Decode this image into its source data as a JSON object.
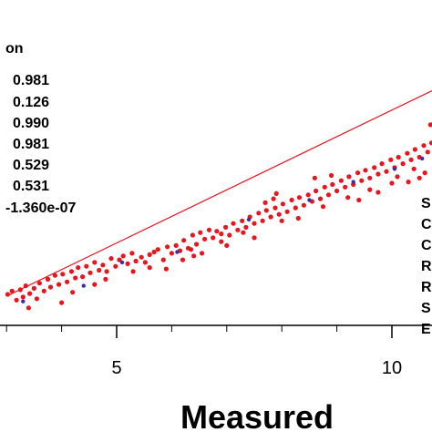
{
  "chart_data": {
    "type": "scatter",
    "title": "",
    "xlabel": "Measured",
    "ylabel": "",
    "xlim": [
      3,
      11.5
    ],
    "ylim": [
      0,
      12
    ],
    "x_ticks": [
      5,
      10
    ],
    "x_tick_labels": [
      "5",
      "10"
    ],
    "grid": false,
    "stats_header": "on",
    "stats_values": [
      "0.981",
      "0.126",
      "0.990",
      "0.981",
      "0.529",
      "0.531",
      "-1.360e-07"
    ],
    "right_legend_letters": [
      "S",
      "C",
      "C",
      "R",
      "R",
      "S",
      "E"
    ],
    "fit_line": {
      "x": [
        3,
        11.5
      ],
      "y": [
        1.65,
        10.35
      ]
    },
    "series": [
      {
        "color": "#e8151f",
        "points": [
          [
            3.02,
            1.72
          ],
          [
            3.1,
            1.85
          ],
          [
            3.18,
            1.5
          ],
          [
            3.25,
            1.9
          ],
          [
            3.3,
            1.62
          ],
          [
            3.35,
            2.05
          ],
          [
            3.42,
            1.75
          ],
          [
            3.5,
            1.95
          ],
          [
            3.55,
            1.55
          ],
          [
            3.6,
            2.15
          ],
          [
            3.68,
            1.85
          ],
          [
            3.75,
            2.3
          ],
          [
            3.8,
            2.0
          ],
          [
            3.88,
            2.45
          ],
          [
            3.95,
            2.1
          ],
          [
            4.02,
            2.5
          ],
          [
            4.1,
            2.2
          ],
          [
            4.18,
            2.6
          ],
          [
            4.25,
            2.35
          ],
          [
            4.3,
            2.75
          ],
          [
            4.38,
            2.4
          ],
          [
            4.45,
            2.8
          ],
          [
            4.52,
            2.55
          ],
          [
            4.6,
            2.95
          ],
          [
            4.68,
            2.65
          ],
          [
            4.75,
            2.85
          ],
          [
            4.82,
            2.6
          ],
          [
            4.9,
            3.1
          ],
          [
            4.98,
            2.8
          ],
          [
            5.05,
            3.05
          ],
          [
            5.12,
            3.2
          ],
          [
            5.2,
            2.9
          ],
          [
            5.28,
            3.3
          ],
          [
            5.35,
            3.0
          ],
          [
            5.45,
            3.15
          ],
          [
            5.52,
            2.95
          ],
          [
            5.6,
            3.25
          ],
          [
            5.68,
            3.35
          ],
          [
            5.75,
            3.45
          ],
          [
            5.85,
            3.05
          ],
          [
            5.92,
            3.55
          ],
          [
            6.0,
            3.3
          ],
          [
            6.08,
            3.6
          ],
          [
            6.15,
            3.4
          ],
          [
            6.22,
            3.8
          ],
          [
            6.3,
            3.5
          ],
          [
            6.38,
            4.0
          ],
          [
            6.45,
            3.65
          ],
          [
            6.52,
            4.1
          ],
          [
            6.6,
            3.85
          ],
          [
            6.68,
            4.2
          ],
          [
            6.75,
            3.9
          ],
          [
            6.82,
            4.15
          ],
          [
            6.9,
            4.05
          ],
          [
            6.98,
            4.3
          ],
          [
            7.05,
            4.0
          ],
          [
            7.12,
            4.45
          ],
          [
            7.2,
            4.2
          ],
          [
            7.28,
            4.55
          ],
          [
            7.35,
            4.3
          ],
          [
            7.42,
            4.7
          ],
          [
            7.5,
            4.45
          ],
          [
            7.58,
            4.85
          ],
          [
            7.65,
            4.55
          ],
          [
            7.72,
            4.95
          ],
          [
            7.8,
            4.7
          ],
          [
            7.88,
            5.05
          ],
          [
            7.95,
            4.8
          ],
          [
            8.02,
            5.2
          ],
          [
            8.1,
            4.9
          ],
          [
            8.18,
            5.35
          ],
          [
            8.25,
            5.05
          ],
          [
            8.32,
            5.45
          ],
          [
            8.4,
            5.15
          ],
          [
            8.48,
            5.55
          ],
          [
            8.55,
            5.3
          ],
          [
            8.62,
            5.7
          ],
          [
            8.7,
            5.4
          ],
          [
            8.78,
            5.85
          ],
          [
            8.85,
            5.55
          ],
          [
            8.92,
            5.95
          ],
          [
            9.0,
            5.7
          ],
          [
            9.08,
            6.1
          ],
          [
            9.15,
            5.85
          ],
          [
            9.22,
            6.25
          ],
          [
            9.3,
            5.95
          ],
          [
            9.38,
            6.4
          ],
          [
            9.45,
            6.1
          ],
          [
            9.52,
            6.5
          ],
          [
            9.6,
            6.2
          ],
          [
            9.68,
            6.6
          ],
          [
            9.75,
            6.35
          ],
          [
            9.82,
            6.75
          ],
          [
            9.9,
            6.45
          ],
          [
            9.98,
            6.9
          ],
          [
            10.05,
            6.6
          ],
          [
            10.12,
            7.0
          ],
          [
            10.2,
            6.75
          ],
          [
            10.28,
            7.15
          ],
          [
            10.35,
            6.9
          ],
          [
            10.42,
            7.3
          ],
          [
            10.5,
            7.0
          ],
          [
            10.58,
            7.45
          ],
          [
            10.65,
            7.2
          ],
          [
            10.72,
            7.55
          ],
          [
            10.8,
            7.3
          ],
          [
            10.88,
            7.7
          ],
          [
            10.95,
            7.45
          ],
          [
            11.02,
            7.85
          ],
          [
            11.1,
            7.6
          ],
          [
            11.18,
            7.95
          ],
          [
            11.25,
            7.8
          ],
          [
            11.32,
            8.05
          ],
          [
            11.4,
            7.95
          ],
          [
            11.45,
            8.1
          ],
          [
            3.4,
            1.2
          ],
          [
            4.0,
            1.4
          ],
          [
            4.6,
            2.1
          ],
          [
            5.3,
            2.6
          ],
          [
            5.9,
            2.7
          ],
          [
            6.4,
            3.2
          ],
          [
            6.55,
            3.3
          ],
          [
            6.35,
            3.45
          ],
          [
            7.0,
            3.6
          ],
          [
            7.5,
            3.9
          ],
          [
            7.85,
            5.4
          ],
          [
            7.9,
            5.6
          ],
          [
            7.7,
            5.25
          ],
          [
            8.3,
            4.65
          ],
          [
            8.6,
            6.2
          ],
          [
            8.9,
            6.3
          ],
          [
            9.4,
            5.35
          ],
          [
            9.75,
            5.65
          ],
          [
            10.1,
            6.25
          ],
          [
            10.3,
            6.05
          ],
          [
            10.5,
            6.2
          ],
          [
            10.6,
            6.4
          ],
          [
            10.7,
            8.25
          ],
          [
            10.85,
            8.4
          ],
          [
            11.0,
            8.6
          ],
          [
            11.2,
            8.1
          ],
          [
            11.3,
            8.3
          ],
          [
            11.4,
            8.5
          ],
          [
            4.2,
            1.8
          ],
          [
            4.8,
            2.3
          ],
          [
            5.6,
            2.75
          ],
          [
            6.2,
            3.05
          ],
          [
            6.9,
            3.75
          ],
          [
            7.3,
            4.1
          ],
          [
            8.0,
            4.55
          ],
          [
            8.75,
            5.1
          ],
          [
            9.2,
            5.45
          ],
          [
            9.6,
            5.75
          ],
          [
            10.0,
            6.0
          ],
          [
            10.4,
            6.55
          ]
        ]
      },
      {
        "color": "#3a2ea8",
        "points": [
          [
            3.3,
            1.45
          ],
          [
            4.4,
            2.05
          ],
          [
            5.1,
            2.95
          ],
          [
            6.1,
            3.35
          ],
          [
            7.4,
            4.6
          ],
          [
            8.5,
            5.35
          ],
          [
            9.3,
            6.05
          ],
          [
            10.05,
            6.55
          ],
          [
            10.55,
            6.95
          ],
          [
            11.15,
            7.7
          ]
        ]
      }
    ]
  }
}
